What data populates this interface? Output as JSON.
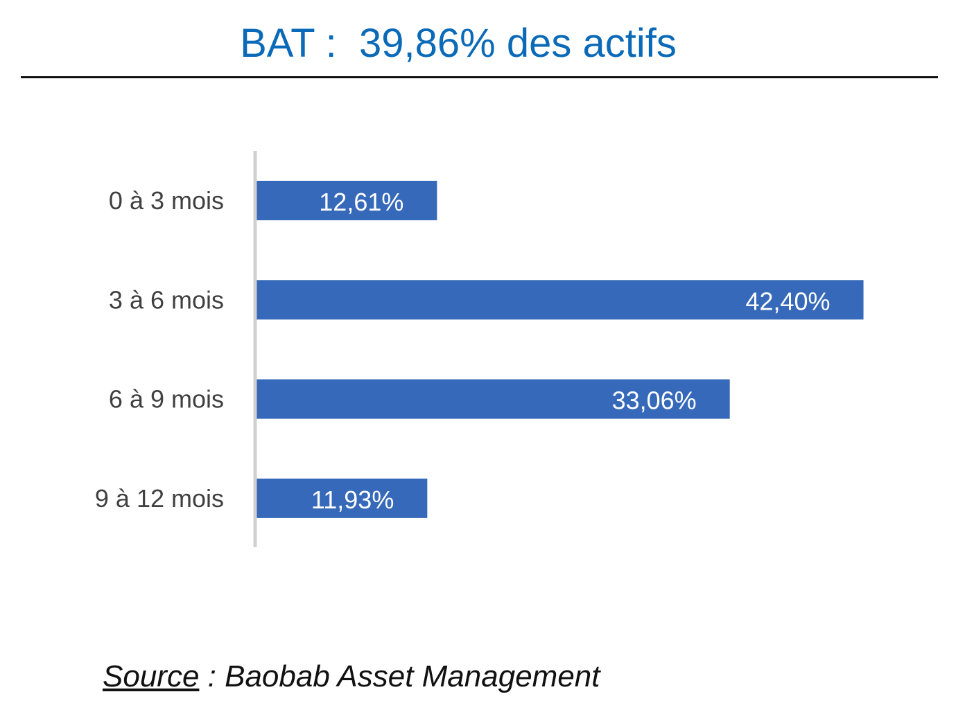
{
  "title": "BAT :  39,86% des actifs",
  "source": {
    "label": "Source",
    "text": " : Baobab Asset Management"
  },
  "chart_data": {
    "type": "bar",
    "orientation": "horizontal",
    "categories": [
      "0 à 3 mois",
      "3 à 6 mois",
      "6 à 9 mois",
      "9 à 12 mois"
    ],
    "values": [
      12.61,
      42.4,
      33.06,
      11.93
    ],
    "data_labels": [
      "12,61%",
      "42,40%",
      "33,06%",
      "11,93%"
    ],
    "unit": "%",
    "xlim": [
      0,
      50
    ],
    "grid": false,
    "legend": "none",
    "bar_color": "#3669b9",
    "label_color": "#ffffff",
    "axis_color": "#d0d0d0",
    "category_color": "#404040"
  }
}
